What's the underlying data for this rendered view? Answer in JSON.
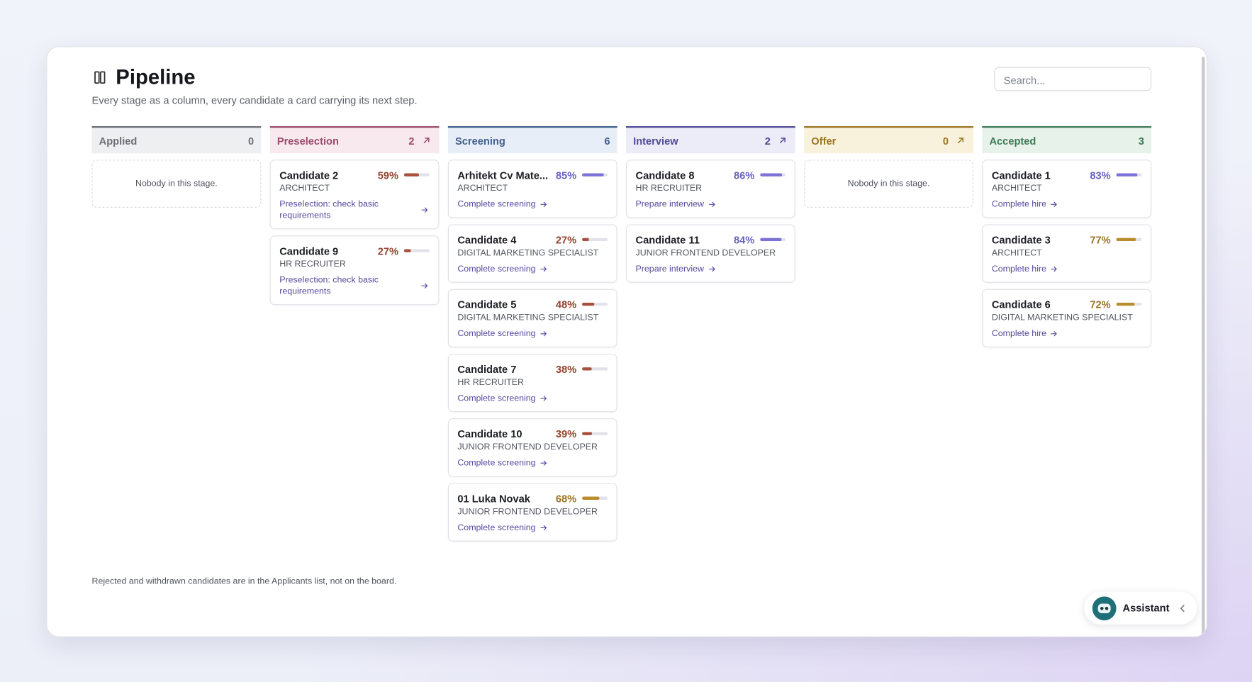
{
  "header": {
    "title": "Pipeline",
    "subtitle": "Every stage as a column, every candidate a card carrying its next step.",
    "search_placeholder": "Search..."
  },
  "columns": [
    {
      "name": "Applied",
      "count": 0,
      "color": "#6b6f76",
      "bg": "#eeeff1",
      "expandable": false,
      "empty_text": "Nobody in this stage.",
      "cards": []
    },
    {
      "name": "Preselection",
      "count": 2,
      "color": "#9a4a6a",
      "bg": "#f8e9ef",
      "expandable": true,
      "cards": [
        {
          "name": "Candidate 2",
          "score": 59,
          "score_label": "59%",
          "role": "ARCHITECT",
          "action": "Preselection: check basic requirements"
        },
        {
          "name": "Candidate 9",
          "score": 27,
          "score_label": "27%",
          "role": "HR RECRUITER",
          "action": "Preselection: check basic requirements"
        }
      ]
    },
    {
      "name": "Screening",
      "count": 6,
      "color": "#3f5f8a",
      "bg": "#e8eef7",
      "expandable": false,
      "cards": [
        {
          "name": "Arhitekt Cv Mate...",
          "score": 85,
          "score_label": "85%",
          "role": "ARCHITECT",
          "action": "Complete screening"
        },
        {
          "name": "Candidate 4",
          "score": 27,
          "score_label": "27%",
          "role": "DIGITAL MARKETING SPECIALIST",
          "action": "Complete screening"
        },
        {
          "name": "Candidate 5",
          "score": 48,
          "score_label": "48%",
          "role": "DIGITAL MARKETING SPECIALIST",
          "action": "Complete screening"
        },
        {
          "name": "Candidate 7",
          "score": 38,
          "score_label": "38%",
          "role": "HR RECRUITER",
          "action": "Complete screening"
        },
        {
          "name": "Candidate 10",
          "score": 39,
          "score_label": "39%",
          "role": "JUNIOR FRONTEND DEVELOPER",
          "action": "Complete screening"
        },
        {
          "name": "01 Luka Novak",
          "score": 68,
          "score_label": "68%",
          "role": "JUNIOR FRONTEND DEVELOPER",
          "action": "Complete screening"
        }
      ]
    },
    {
      "name": "Interview",
      "count": 2,
      "color": "#4f4a94",
      "bg": "#ecebf8",
      "expandable": true,
      "cards": [
        {
          "name": "Candidate 8",
          "score": 86,
          "score_label": "86%",
          "role": "HR RECRUITER",
          "action": "Prepare interview"
        },
        {
          "name": "Candidate 11",
          "score": 84,
          "score_label": "84%",
          "role": "JUNIOR FRONTEND DEVELOPER",
          "action": "Prepare interview"
        }
      ]
    },
    {
      "name": "Offer",
      "count": 0,
      "color": "#9a7420",
      "bg": "#f8f1dc",
      "expandable": true,
      "empty_text": "Nobody in this stage.",
      "cards": []
    },
    {
      "name": "Accepted",
      "count": 3,
      "color": "#3e7a57",
      "bg": "#e7f2eb",
      "expandable": false,
      "cards": [
        {
          "name": "Candidate 1",
          "score": 83,
          "score_label": "83%",
          "role": "ARCHITECT",
          "action": "Complete hire"
        },
        {
          "name": "Candidate 3",
          "score": 77,
          "score_label": "77%",
          "role": "ARCHITECT",
          "action": "Complete hire"
        },
        {
          "name": "Candidate 6",
          "score": 72,
          "score_label": "72%",
          "role": "DIGITAL MARKETING SPECIALIST",
          "action": "Complete hire"
        }
      ]
    }
  ],
  "footer_note": "Rejected and withdrawn candidates are in the Applicants list, not on the board.",
  "assistant": {
    "label": "Assistant"
  }
}
